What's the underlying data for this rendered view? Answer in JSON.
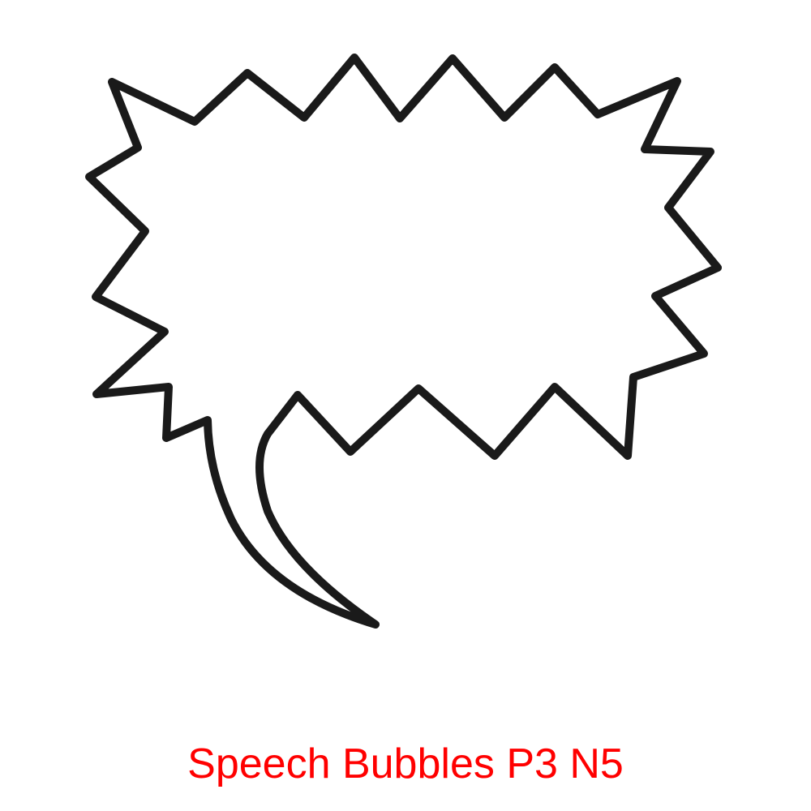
{
  "caption": {
    "text": "Speech Bubbles P3 N5"
  },
  "colors": {
    "caption": "#ff0000",
    "outline": "#1a1a1a",
    "background": "#ffffff",
    "fill": "#ffffff"
  },
  "shape": {
    "kind": "spiky-burst-speech-bubble-with-tail"
  }
}
